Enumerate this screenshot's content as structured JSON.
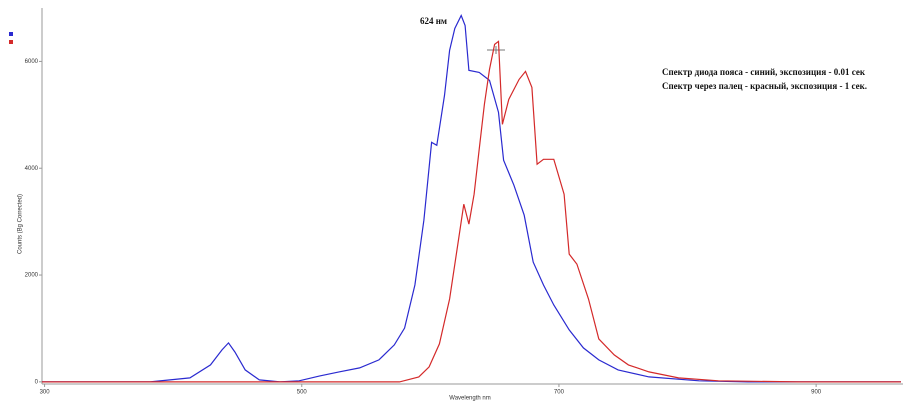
{
  "chart_data": {
    "type": "line",
    "x_label": "Wavelength nm",
    "y_label": "Counts (Bg Corrected)",
    "annotations": [
      "624 нм",
      "Спектр диода пояса - синий, экспозиция - 0.01 сек",
      "Спектр через палец - красный, экспозиция - 1 сек."
    ],
    "xlim": [
      298,
      966
    ],
    "xticks": [
      300,
      500,
      700,
      900
    ],
    "ylim": [
      -40,
      7000
    ],
    "yticks": [
      0,
      2000,
      4000,
      6000
    ],
    "series": [
      {
        "color": "#2a2ad0",
        "x": [
          298,
          382,
          413,
          429,
          438,
          443,
          448,
          456,
          467,
          483,
          498,
          514,
          529,
          545,
          560,
          572,
          580,
          588,
          595,
          601,
          605,
          611,
          615,
          619,
          624,
          627,
          630,
          638,
          646,
          653,
          657,
          665,
          673,
          680,
          688,
          696,
          708,
          719,
          731,
          746,
          770,
          809,
          847,
          966
        ],
        "values": [
          0,
          0,
          75,
          318,
          598,
          730,
          560,
          224,
          37,
          0,
          19,
          112,
          187,
          262,
          411,
          692,
          1009,
          1813,
          3028,
          4486,
          4430,
          5364,
          6206,
          6617,
          6860,
          6673,
          5831,
          5794,
          5644,
          5046,
          4150,
          3682,
          3121,
          2243,
          1813,
          1439,
          972,
          636,
          411,
          224,
          93,
          19,
          0,
          0
        ]
      },
      {
        "color": "#d42a2a",
        "x": [
          298,
          576,
          591,
          599,
          607,
          615,
          622,
          626,
          630,
          634,
          638,
          642,
          646,
          650,
          653,
          656,
          661,
          669,
          674,
          679,
          683,
          688,
          696,
          704,
          708,
          714,
          723,
          731,
          743,
          754,
          770,
          793,
          824,
          886,
          966
        ],
        "values": [
          0,
          0,
          93,
          280,
          710,
          1551,
          2673,
          3327,
          2953,
          3514,
          4355,
          5196,
          5850,
          6318,
          6374,
          4822,
          5290,
          5663,
          5813,
          5514,
          4075,
          4168,
          4168,
          3514,
          2392,
          2205,
          1551,
          804,
          505,
          318,
          187,
          75,
          19,
          0,
          0
        ]
      }
    ]
  }
}
